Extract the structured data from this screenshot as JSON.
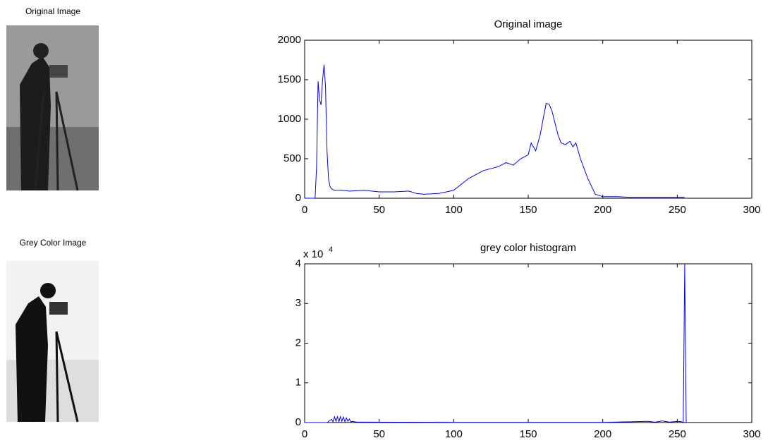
{
  "images": [
    {
      "title": "Original Image"
    },
    {
      "title": "Grey Color Image"
    }
  ],
  "chart_data": [
    {
      "type": "line",
      "title": "Original image",
      "color": "#0000ff",
      "x": [
        0,
        5,
        7,
        8,
        9,
        10,
        11,
        12,
        13,
        14,
        15,
        16,
        17,
        18,
        20,
        25,
        30,
        40,
        50,
        60,
        70,
        75,
        80,
        90,
        100,
        110,
        120,
        130,
        135,
        140,
        145,
        150,
        152,
        155,
        158,
        160,
        162,
        164,
        166,
        168,
        170,
        172,
        175,
        178,
        180,
        182,
        185,
        190,
        195,
        200,
        210,
        220,
        230,
        240,
        250,
        255
      ],
      "values": [
        0,
        0,
        0,
        400,
        1480,
        1250,
        1180,
        1500,
        1690,
        1400,
        600,
        250,
        150,
        120,
        100,
        100,
        90,
        100,
        80,
        80,
        90,
        60,
        50,
        60,
        100,
        250,
        350,
        400,
        450,
        420,
        500,
        550,
        700,
        600,
        800,
        1000,
        1200,
        1190,
        1100,
        950,
        800,
        700,
        680,
        720,
        650,
        700,
        500,
        250,
        50,
        20,
        20,
        10,
        10,
        10,
        10,
        10
      ],
      "xlim": [
        0,
        300
      ],
      "ylim": [
        0,
        2000
      ],
      "xticks": [
        0,
        50,
        100,
        150,
        200,
        250,
        300
      ],
      "yticks": [
        0,
        500,
        1000,
        1500,
        2000
      ]
    },
    {
      "type": "line",
      "title": "grey color histogram",
      "color": "#0000ff",
      "y_multiplier": {
        "base": "x 10",
        "exponent": "4"
      },
      "x": [
        0,
        15,
        18,
        19,
        20,
        21,
        22,
        23,
        24,
        25,
        26,
        27,
        28,
        29,
        30,
        31,
        32,
        35,
        100,
        200,
        230,
        235,
        240,
        245,
        250,
        253,
        254,
        255,
        256
      ],
      "values": [
        0,
        0,
        800,
        200,
        1500,
        300,
        1500,
        200,
        1500,
        300,
        1400,
        200,
        1200,
        300,
        900,
        100,
        300,
        100,
        50,
        50,
        300,
        100,
        400,
        100,
        300,
        200,
        0,
        40000,
        0
      ],
      "xlim": [
        0,
        300
      ],
      "ylim": [
        0,
        40000
      ],
      "xticks": [
        0,
        50,
        100,
        150,
        200,
        250,
        300
      ],
      "yticks": [
        0,
        {
          "value": 10000,
          "label": "1"
        },
        {
          "value": 20000,
          "label": "2"
        },
        {
          "value": 30000,
          "label": "3"
        },
        {
          "value": 40000,
          "label": "4"
        }
      ]
    }
  ]
}
